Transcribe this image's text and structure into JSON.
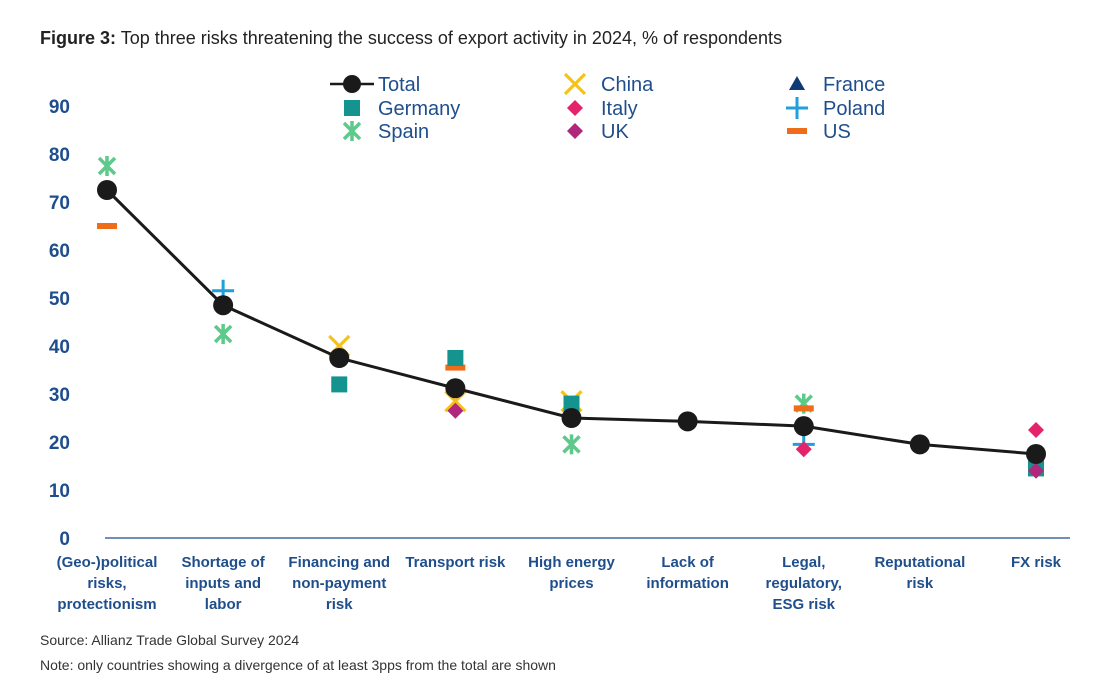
{
  "title_bold": "Figure 3:",
  "title_rest": "Top three risks threatening the success of export activity in 2024, % of respondents",
  "source": "Source: Allianz Trade Global Survey 2024",
  "note": "Note: only countries showing a divergence of at least 3pps from the total are shown",
  "colors": {
    "total": "#1a1a1a",
    "china": "#f5c21b",
    "france": "#0e3a78",
    "germany": "#14938f",
    "italy": "#e4236a",
    "poland": "#1fa0d8",
    "spain": "#5dc98a",
    "uk": "#b0287c",
    "us": "#ee6d1a",
    "axis": "#1f4e8c",
    "line": "#1a1a1a"
  },
  "chart_data": {
    "type": "line",
    "title": "Top three risks threatening the success of export activity in 2024, % of respondents",
    "ylim": [
      0,
      90
    ],
    "yticks": [
      0,
      10,
      20,
      30,
      40,
      50,
      60,
      70,
      80,
      90
    ],
    "categories": [
      [
        "(Geo-)political",
        "risks,",
        "protectionism"
      ],
      [
        "Shortage of",
        "inputs and",
        "labor"
      ],
      [
        "Financing and",
        "non-payment",
        "risk"
      ],
      [
        "Transport risk"
      ],
      [
        "High energy",
        "prices"
      ],
      [
        "Lack of",
        "information"
      ],
      [
        "Legal,",
        "regulatory,",
        "ESG risk"
      ],
      [
        "Reputational",
        "risk"
      ],
      [
        "FX risk"
      ]
    ],
    "legend": [
      {
        "key": "total",
        "label": "Total",
        "marker": "line-dot"
      },
      {
        "key": "china",
        "label": "China",
        "marker": "x"
      },
      {
        "key": "france",
        "label": "France",
        "marker": "triangle"
      },
      {
        "key": "germany",
        "label": "Germany",
        "marker": "square"
      },
      {
        "key": "italy",
        "label": "Italy",
        "marker": "diamond"
      },
      {
        "key": "poland",
        "label": "Poland",
        "marker": "plus"
      },
      {
        "key": "spain",
        "label": "Spain",
        "marker": "star"
      },
      {
        "key": "uk",
        "label": "UK",
        "marker": "diamond"
      },
      {
        "key": "us",
        "label": "US",
        "marker": "dash"
      }
    ],
    "series": [
      {
        "key": "total",
        "name": "Total",
        "values": [
          72.5,
          48.5,
          37.5,
          31.2,
          25.0,
          24.3,
          23.3,
          19.5,
          17.5
        ]
      },
      {
        "key": "spain",
        "name": "Spain",
        "values": [
          77.5,
          42.5,
          null,
          null,
          19.5,
          null,
          28.0,
          null,
          null
        ]
      },
      {
        "key": "us",
        "name": "US",
        "values": [
          65.0,
          null,
          null,
          35.5,
          null,
          null,
          27.0,
          null,
          null
        ]
      },
      {
        "key": "poland",
        "name": "Poland",
        "values": [
          null,
          51.5,
          null,
          null,
          null,
          null,
          19.5,
          null,
          null
        ]
      },
      {
        "key": "china",
        "name": "China",
        "values": [
          null,
          null,
          40.0,
          28.5,
          28.5,
          null,
          null,
          null,
          null
        ]
      },
      {
        "key": "germany",
        "name": "Germany",
        "values": [
          null,
          null,
          32.0,
          37.5,
          28.0,
          null,
          null,
          null,
          14.5
        ]
      },
      {
        "key": "uk",
        "name": "UK",
        "values": [
          null,
          null,
          null,
          26.5,
          null,
          null,
          null,
          null,
          14.0
        ]
      },
      {
        "key": "italy",
        "name": "Italy",
        "values": [
          null,
          null,
          null,
          null,
          null,
          null,
          18.5,
          null,
          22.5
        ]
      },
      {
        "key": "france",
        "name": "France",
        "values": [
          null,
          null,
          null,
          null,
          null,
          null,
          null,
          null,
          null
        ]
      }
    ]
  }
}
